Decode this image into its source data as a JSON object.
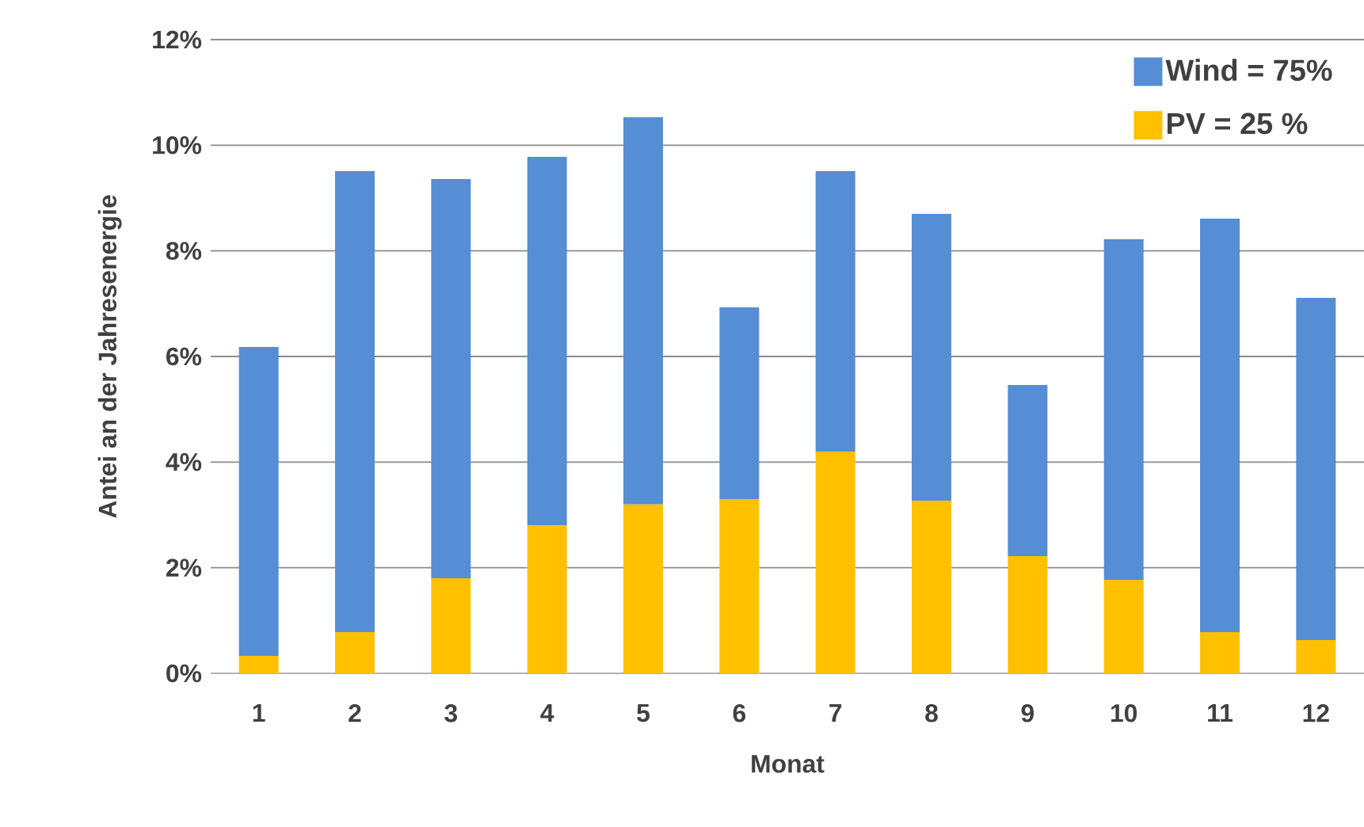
{
  "chart_data": {
    "type": "bar",
    "stacked": true,
    "xlabel": "Monat",
    "ylabel": "Antei an der Jahresenergie",
    "categories": [
      "1",
      "2",
      "3",
      "4",
      "5",
      "6",
      "7",
      "8",
      "9",
      "10",
      "11",
      "12"
    ],
    "series": [
      {
        "name": "PV = 25 %",
        "color": "#ffc000",
        "values": [
          0.33,
          0.78,
          1.8,
          2.8,
          3.2,
          3.3,
          4.2,
          3.27,
          2.22,
          1.77,
          0.78,
          0.63
        ]
      },
      {
        "name": "Wind = 75%",
        "color": "#558ed5",
        "values": [
          5.85,
          8.73,
          7.56,
          6.98,
          7.33,
          3.63,
          5.31,
          5.43,
          3.24,
          6.45,
          7.83,
          6.48
        ]
      }
    ],
    "ylim": [
      0,
      12
    ],
    "yticks": [
      {
        "value": 0,
        "label": "0%"
      },
      {
        "value": 2,
        "label": "2%"
      },
      {
        "value": 4,
        "label": "4%"
      },
      {
        "value": 6,
        "label": "6%"
      },
      {
        "value": 8,
        "label": "8%"
      },
      {
        "value": 10,
        "label": "10%"
      },
      {
        "value": 12,
        "label": "12%"
      }
    ],
    "grid": "y",
    "legend": "top right"
  }
}
